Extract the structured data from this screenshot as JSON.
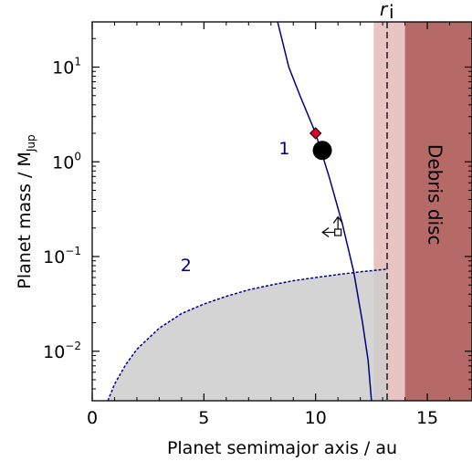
{
  "chart_data": {
    "type": "scatter",
    "xlabel": "Planet semimajor axis / au",
    "ylabel": {
      "prefix": "Planet mass / M",
      "subscript": "Jup"
    },
    "xlim": [
      0,
      17
    ],
    "ylim": [
      0.003,
      30
    ],
    "y_scale": "log",
    "x_ticks": [
      0,
      5,
      10,
      15
    ],
    "x_tick_labels": [
      "0",
      "5",
      "10",
      "15"
    ],
    "y_ticks": [
      {
        "value": 10,
        "base": "10",
        "exp": "1"
      },
      {
        "value": 1,
        "base": "10",
        "exp": "0"
      },
      {
        "value": 0.1,
        "base": "10",
        "exp": "−1"
      },
      {
        "value": 0.01,
        "base": "10",
        "exp": "−2"
      }
    ],
    "curves": [
      {
        "label": "1",
        "label_at": {
          "x": 8.6,
          "y": 1.2
        },
        "style": "solid",
        "color": "#00007a",
        "points": [
          [
            8.3,
            30
          ],
          [
            8.8,
            10
          ],
          [
            9.3,
            5
          ],
          [
            10.0,
            2.0
          ],
          [
            10.6,
            0.7
          ],
          [
            11.2,
            0.22
          ],
          [
            11.7,
            0.07
          ],
          [
            12.1,
            0.02
          ],
          [
            12.35,
            0.008
          ],
          [
            12.5,
            0.003
          ]
        ]
      },
      {
        "label": "2",
        "label_at": {
          "x": 4.2,
          "y": 0.07
        },
        "style": "dashed",
        "color": "#00007a",
        "points": [
          [
            0.7,
            0.003
          ],
          [
            1.0,
            0.0045
          ],
          [
            1.5,
            0.0072
          ],
          [
            2.0,
            0.0105
          ],
          [
            3.0,
            0.0175
          ],
          [
            4.0,
            0.025
          ],
          [
            5.0,
            0.0315
          ],
          [
            6.0,
            0.038
          ],
          [
            7.0,
            0.0445
          ],
          [
            8.0,
            0.05
          ],
          [
            9.0,
            0.0555
          ],
          [
            10.0,
            0.06
          ],
          [
            11.0,
            0.0645
          ],
          [
            12.0,
            0.069
          ],
          [
            13.2,
            0.0735
          ]
        ]
      }
    ],
    "points": [
      {
        "name": "diamond",
        "x": 10.0,
        "y": 2.0,
        "marker": "diamond",
        "color": "#e2002f"
      },
      {
        "name": "circle",
        "x": 10.3,
        "y": 1.32,
        "marker": "circle",
        "color": "#000000"
      },
      {
        "name": "limit-square",
        "x": 11.0,
        "y": 0.18,
        "marker": "square-upper-limit",
        "color": "#000000"
      }
    ],
    "regions": [
      {
        "name": "uncertainty-band",
        "x": [
          12.6,
          14.0
        ],
        "color": "#e8c4c2"
      },
      {
        "name": "debris-disc",
        "x": [
          14.0,
          17.0
        ],
        "color": "#b66a68",
        "label": "Debris disc"
      }
    ],
    "vline": {
      "x": 13.2,
      "label": "r",
      "label_sub": "i",
      "style": "dashed"
    },
    "shade_color": "#cdcdcd"
  }
}
